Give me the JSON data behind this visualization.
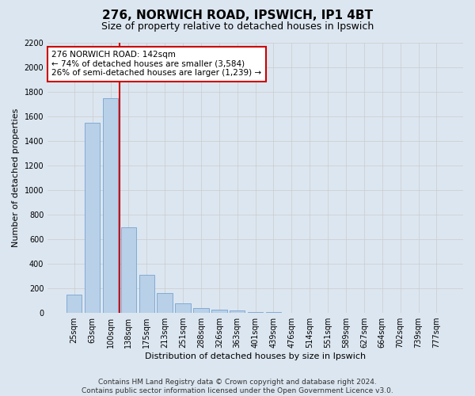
{
  "title": "276, NORWICH ROAD, IPSWICH, IP1 4BT",
  "subtitle": "Size of property relative to detached houses in Ipswich",
  "xlabel": "Distribution of detached houses by size in Ipswich",
  "ylabel": "Number of detached properties",
  "categories": [
    "25sqm",
    "63sqm",
    "100sqm",
    "138sqm",
    "175sqm",
    "213sqm",
    "251sqm",
    "288sqm",
    "326sqm",
    "363sqm",
    "401sqm",
    "439sqm",
    "476sqm",
    "514sqm",
    "551sqm",
    "589sqm",
    "627sqm",
    "664sqm",
    "702sqm",
    "739sqm",
    "777sqm"
  ],
  "values": [
    150,
    1550,
    1750,
    700,
    310,
    160,
    80,
    40,
    25,
    20,
    10,
    5,
    3,
    2,
    2,
    1,
    1,
    1,
    1,
    1,
    1
  ],
  "bar_color": "#b8d0e8",
  "bar_edge_color": "#6699cc",
  "vline_x_index": 3,
  "vline_color": "#cc0000",
  "annotation_text": "276 NORWICH ROAD: 142sqm\n← 74% of detached houses are smaller (3,584)\n26% of semi-detached houses are larger (1,239) →",
  "annotation_box_color": "#ffffff",
  "annotation_box_edge": "#cc0000",
  "ylim": [
    0,
    2200
  ],
  "yticks": [
    0,
    200,
    400,
    600,
    800,
    1000,
    1200,
    1400,
    1600,
    1800,
    2000,
    2200
  ],
  "grid_color": "#cccccc",
  "bg_color": "#dce6f0",
  "footer_line1": "Contains HM Land Registry data © Crown copyright and database right 2024.",
  "footer_line2": "Contains public sector information licensed under the Open Government Licence v3.0.",
  "title_fontsize": 11,
  "subtitle_fontsize": 9,
  "xlabel_fontsize": 8,
  "ylabel_fontsize": 8,
  "tick_fontsize": 7,
  "annotation_fontsize": 7.5,
  "footer_fontsize": 6.5
}
